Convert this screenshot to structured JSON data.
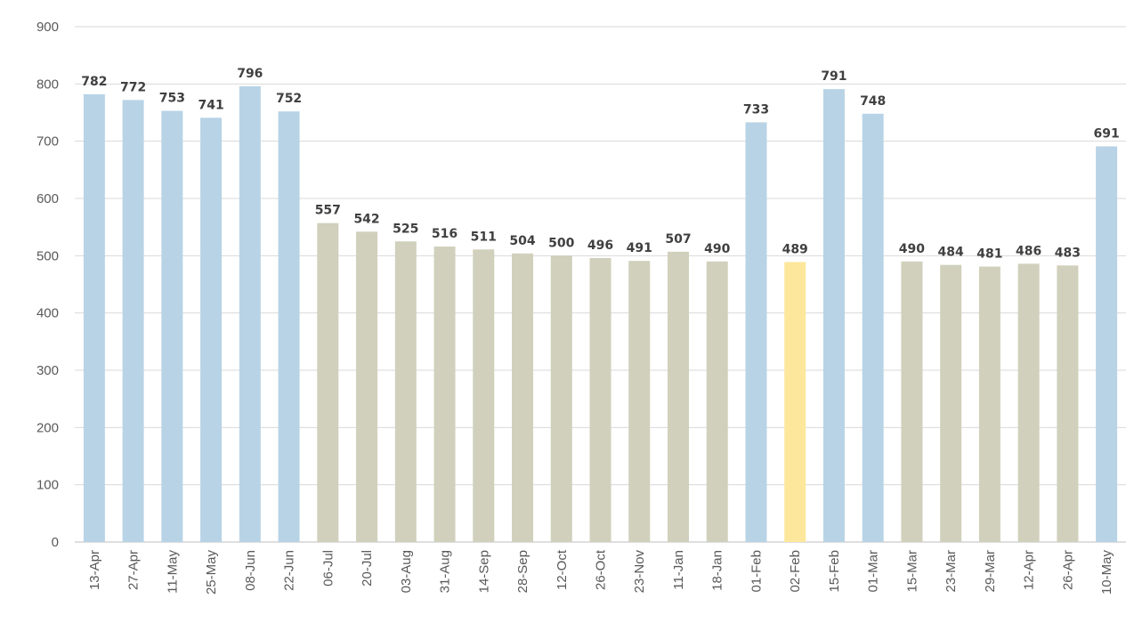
{
  "chart_data": {
    "type": "bar",
    "title": "",
    "xlabel": "",
    "ylabel": "",
    "ylim": [
      0,
      900
    ],
    "yticks": [
      0,
      100,
      200,
      300,
      400,
      500,
      600,
      700,
      800,
      900
    ],
    "grid": true,
    "legend": "none",
    "categories": [
      "13-Apr",
      "27-Apr",
      "11-May",
      "25-May",
      "08-Jun",
      "22-Jun",
      "06-Jul",
      "20-Jul",
      "03-Aug",
      "31-Aug",
      "14-Sep",
      "28-Sep",
      "12-Oct",
      "26-Oct",
      "23-Nov",
      "11-Jan",
      "18-Jan",
      "01-Feb",
      "02-Feb",
      "15-Feb",
      "01-Mar",
      "15-Mar",
      "23-Mar",
      "29-Mar",
      "12-Apr",
      "26-Apr",
      "10-May"
    ],
    "values": [
      782,
      772,
      753,
      741,
      796,
      752,
      557,
      542,
      525,
      516,
      511,
      504,
      500,
      496,
      491,
      507,
      490,
      733,
      489,
      791,
      748,
      490,
      484,
      481,
      486,
      483,
      691
    ],
    "bar_colors": [
      "#b8d3e6",
      "#b8d3e6",
      "#b8d3e6",
      "#b8d3e6",
      "#b8d3e6",
      "#b8d3e6",
      "#d0d0bc",
      "#d0d0bc",
      "#d0d0bc",
      "#d0d0bc",
      "#d0d0bc",
      "#d0d0bc",
      "#d0d0bc",
      "#d0d0bc",
      "#d0d0bc",
      "#d0d0bc",
      "#d0d0bc",
      "#b8d3e6",
      "#fde79c",
      "#b8d3e6",
      "#b8d3e6",
      "#d0d0bc",
      "#d0d0bc",
      "#d0d0bc",
      "#d0d0bc",
      "#d0d0bc",
      "#b8d3e6"
    ]
  }
}
